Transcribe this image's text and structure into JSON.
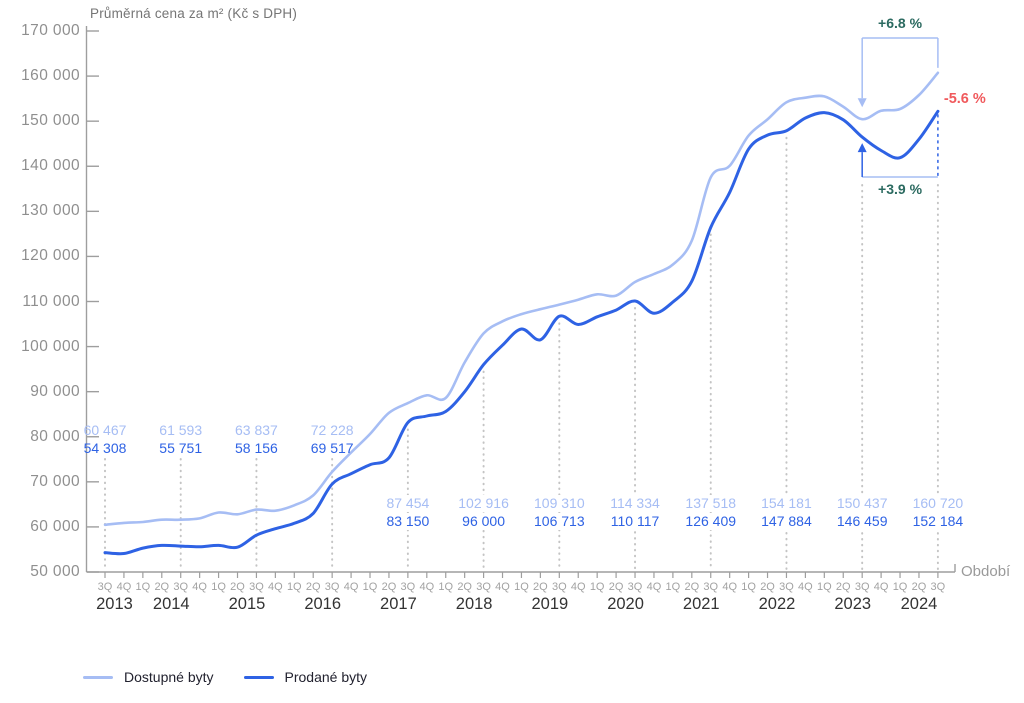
{
  "title": "Průměrná cena za m² (Kč s DPH)",
  "xlabel": "Období",
  "colors": {
    "light_series": "#a6bdf4",
    "dark_series": "#2e62e4",
    "annotation_green": "#2b6a60",
    "annotation_red": "#f0595c",
    "axis": "#9e9e9e",
    "dotted_guide": "#c4c4c4",
    "tick_text": "#8f8f8f",
    "quarter_text": "#a2a2a2",
    "year_text": "#333333",
    "title_text": "#757575"
  },
  "annotations": {
    "pct_top": "+6.8 %",
    "pct_bottom": "+3.9 %",
    "pct_right": "-5.6 %"
  },
  "legend": [
    {
      "label": "Dostupné byty"
    },
    {
      "label": "Prodané byty"
    }
  ],
  "chart_data": {
    "type": "line",
    "title": "Průměrná cena za m² (Kč s DPH)",
    "xlabel": "Období",
    "ylabel": "Průměrná cena za m² (Kč s DPH)",
    "ylim": [
      50000,
      170000
    ],
    "grid": false,
    "legend_position": "bottom",
    "y_ticks": [
      170000,
      160000,
      150000,
      140000,
      130000,
      120000,
      110000,
      100000,
      90000,
      80000,
      70000,
      60000,
      50000
    ],
    "y_tick_labels": [
      "170 000",
      "160 000",
      "150 000",
      "140 000",
      "130 000",
      "120 000",
      "110 000",
      "100 000",
      "90 000",
      "80 000",
      "70 000",
      "60 000",
      "50 000"
    ],
    "x_quarters": [
      "3Q",
      "4Q",
      "1Q",
      "2Q",
      "3Q",
      "4Q",
      "1Q",
      "2Q",
      "3Q",
      "4Q",
      "1Q",
      "2Q",
      "3Q",
      "4Q",
      "1Q",
      "2Q",
      "3Q",
      "4Q",
      "1Q",
      "2Q",
      "3Q",
      "4Q",
      "1Q",
      "2Q",
      "3Q",
      "4Q",
      "1Q",
      "2Q",
      "3Q",
      "4Q",
      "1Q",
      "2Q",
      "3Q",
      "4Q",
      "1Q",
      "2Q",
      "3Q",
      "4Q",
      "1Q",
      "2Q",
      "3Q",
      "4Q",
      "1Q",
      "2Q",
      "3Q"
    ],
    "year_groups": [
      {
        "label": "2013",
        "from": 0,
        "to": 1
      },
      {
        "label": "2014",
        "from": 2,
        "to": 5
      },
      {
        "label": "2015",
        "from": 6,
        "to": 9
      },
      {
        "label": "2016",
        "from": 10,
        "to": 13
      },
      {
        "label": "2017",
        "from": 14,
        "to": 17
      },
      {
        "label": "2018",
        "from": 18,
        "to": 21
      },
      {
        "label": "2019",
        "from": 22,
        "to": 25
      },
      {
        "label": "2020",
        "from": 26,
        "to": 29
      },
      {
        "label": "2021",
        "from": 30,
        "to": 33
      },
      {
        "label": "2022",
        "from": 34,
        "to": 37
      },
      {
        "label": "2023",
        "from": 38,
        "to": 41
      },
      {
        "label": "2024",
        "from": 42,
        "to": 44
      }
    ],
    "series": [
      {
        "name": "Dostupné byty",
        "color": "#a6bdf4",
        "values": [
          60467,
          60900,
          61100,
          61600,
          61593,
          61900,
          63200,
          62800,
          63837,
          63600,
          64800,
          67000,
          72228,
          76500,
          80600,
          85300,
          87454,
          89200,
          88600,
          96500,
          102916,
          105600,
          107200,
          108300,
          109310,
          110400,
          111600,
          111300,
          114334,
          116100,
          118200,
          123500,
          137518,
          140100,
          146800,
          150400,
          154181,
          155200,
          155500,
          153200,
          150437,
          152300,
          152700,
          155800,
          160720
        ]
      },
      {
        "name": "Prodané byty",
        "color": "#2e62e4",
        "values": [
          54308,
          54100,
          55300,
          55900,
          55751,
          55600,
          55900,
          55500,
          58156,
          59600,
          60800,
          63000,
          69517,
          71800,
          73800,
          75300,
          83150,
          84600,
          85600,
          90000,
          96000,
          100300,
          103900,
          101500,
          106713,
          104900,
          106600,
          108100,
          110117,
          107400,
          109900,
          114500,
          126409,
          134200,
          143800,
          146900,
          147884,
          150700,
          151900,
          150300,
          146459,
          143500,
          141900,
          146000,
          152184
        ]
      }
    ],
    "point_labels": [
      {
        "index": 0,
        "quarter": "3Q 2013",
        "light": "60 467",
        "dark": "54 308"
      },
      {
        "index": 4,
        "quarter": "3Q 2014",
        "light": "61 593",
        "dark": "55 751"
      },
      {
        "index": 8,
        "quarter": "3Q 2015",
        "light": "63 837",
        "dark": "58 156"
      },
      {
        "index": 12,
        "quarter": "3Q 2016",
        "light": "72 228",
        "dark": "69 517"
      },
      {
        "index": 16,
        "quarter": "3Q 2017",
        "light": "87 454",
        "dark": "83 150"
      },
      {
        "index": 20,
        "quarter": "3Q 2018",
        "light": "102 916",
        "dark": "96 000"
      },
      {
        "index": 24,
        "quarter": "3Q 2019",
        "light": "109 310",
        "dark": "106 713"
      },
      {
        "index": 28,
        "quarter": "3Q 2020",
        "light": "114 334",
        "dark": "110 117"
      },
      {
        "index": 32,
        "quarter": "3Q 2021",
        "light": "137 518",
        "dark": "126 409"
      },
      {
        "index": 36,
        "quarter": "3Q 2022",
        "light": "154 181",
        "dark": "147 884"
      },
      {
        "index": 40,
        "quarter": "3Q 2023",
        "light": "150 437",
        "dark": "146 459"
      },
      {
        "index": 44,
        "quarter": "3Q 2024",
        "light": "160 720",
        "dark": "152 184"
      }
    ],
    "annotations": [
      {
        "text": "+6.8 %",
        "meaning": "change of Dostupné byty 3Q 2023 → 3Q 2024",
        "color": "#2b6a60"
      },
      {
        "text": "+3.9 %",
        "meaning": "change of Prodané byty 3Q 2023 → 3Q 2024",
        "color": "#2b6a60"
      },
      {
        "text": "-5.6 %",
        "meaning": "gap at 3Q 2024",
        "color": "#f0595c"
      }
    ]
  }
}
